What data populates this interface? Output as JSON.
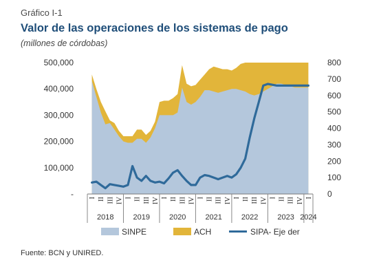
{
  "header": {
    "kicker": "Gráfico I-1",
    "title": "Valor de las operaciones de los sistemas de pago",
    "subtitle": "(millones de córdobas)"
  },
  "source": "Fuente:  BCN y UNIRED.",
  "colors": {
    "sinpe": "#b4c7dc",
    "ach": "#e2b53a",
    "sipa": "#2f6a9a"
  },
  "chart_data": {
    "type": "area",
    "categories": [
      "I",
      "II",
      "III",
      "IV",
      "I",
      "II",
      "III",
      "IV",
      "I",
      "II",
      "III",
      "IV",
      "I",
      "II",
      "III",
      "IV",
      "I",
      "II",
      "III",
      "IV",
      "I",
      "II",
      "III",
      "IV",
      "I",
      "II",
      "III",
      "IV",
      "I",
      "II",
      "III",
      "IV",
      "I",
      "II",
      "III",
      "IV",
      "I",
      "II",
      "III",
      "IV",
      "I",
      "II",
      "III",
      "IV",
      "I",
      "II",
      "III",
      "IV",
      "I",
      "II",
      "III",
      "IV",
      "I",
      "II",
      "III",
      "IV",
      "I"
    ],
    "category_labels": [
      "I",
      "II",
      "III",
      "IV",
      "I",
      "II",
      "III",
      "IV",
      "I",
      "II",
      "III",
      "IV",
      "I",
      "II",
      "III",
      "IV",
      "I",
      "II",
      "III",
      "IV",
      "I",
      "II",
      "III",
      "IV",
      "I"
    ],
    "years": [
      {
        "label": "2018",
        "start": 0,
        "end": 4
      },
      {
        "label": "2019",
        "start": 4,
        "end": 8
      },
      {
        "label": "2020",
        "start": 8,
        "end": 12
      },
      {
        "label": "2021",
        "start": 12,
        "end": 16
      },
      {
        "label": "2022",
        "start": 16,
        "end": 20
      },
      {
        "label": "2023",
        "start": 20,
        "end": 24
      },
      {
        "label": "2024",
        "start": 24,
        "end": 25
      }
    ],
    "x": [
      0.0,
      0.5,
      1.0,
      1.5,
      2.0,
      2.5,
      3.0,
      3.5,
      4.0,
      4.5,
      5.0,
      5.5,
      6.0,
      6.5,
      7.0,
      7.5,
      8.0,
      8.5,
      9.0,
      9.5,
      10.0,
      10.5,
      11.0,
      11.5,
      12.0,
      12.5,
      13.0,
      13.5,
      14.0,
      14.5,
      15.0,
      15.5,
      16.0,
      16.5,
      17.0,
      17.5,
      18.0,
      18.5,
      19.0,
      19.5,
      20.0,
      20.5,
      21.0,
      21.5,
      22.0,
      22.5,
      23.0,
      23.5,
      24.0
    ],
    "series": [
      {
        "name": "SINPE",
        "axis": "left",
        "values": [
          430000,
          370000,
          310000,
          265000,
          270000,
          245000,
          220000,
          200000,
          195000,
          195000,
          210000,
          210000,
          195000,
          215000,
          250000,
          300000,
          300000,
          300000,
          300000,
          310000,
          405000,
          350000,
          340000,
          350000,
          370000,
          395000,
          395000,
          390000,
          385000,
          390000,
          395000,
          400000,
          400000,
          395000,
          390000,
          380000,
          375000,
          380000,
          390000,
          400000,
          410000,
          420000,
          420000,
          415000,
          410000,
          405000,
          405000,
          405000,
          405000
        ]
      },
      {
        "name": "ACH",
        "axis": "left",
        "values": [
          455000,
          400000,
          350000,
          315000,
          280000,
          270000,
          240000,
          220000,
          220000,
          220000,
          245000,
          245000,
          225000,
          240000,
          275000,
          350000,
          355000,
          355000,
          365000,
          380000,
          490000,
          420000,
          410000,
          415000,
          435000,
          455000,
          475000,
          485000,
          480000,
          475000,
          475000,
          470000,
          480000,
          495000,
          500000,
          500000,
          500000,
          500000,
          500000,
          500000,
          500000,
          500000,
          500000,
          500000,
          500000,
          500000,
          500000,
          500000,
          500000
        ]
      },
      {
        "name": "SIPA- Eje der",
        "axis": "right",
        "values": [
          70,
          75,
          55,
          35,
          60,
          55,
          50,
          45,
          55,
          170,
          100,
          80,
          110,
          80,
          70,
          75,
          65,
          95,
          130,
          145,
          110,
          80,
          55,
          55,
          100,
          115,
          110,
          100,
          90,
          100,
          110,
          100,
          120,
          160,
          215,
          345,
          460,
          560,
          660,
          670,
          665,
          660,
          660,
          660,
          660,
          660,
          660,
          660,
          660
        ]
      }
    ],
    "yaxis_left": {
      "min": 0,
      "max": 500000,
      "ticks": [
        "-",
        "100,000",
        "200,000",
        "300,000",
        "400,000",
        "500,000"
      ]
    },
    "yaxis_right": {
      "min": 0,
      "max": 800,
      "ticks": [
        "0",
        "100",
        "200",
        "300",
        "400",
        "500",
        "600",
        "700",
        "800"
      ]
    },
    "legend": [
      "SINPE",
      "ACH",
      "SIPA- Eje der"
    ],
    "legend_position": "bottom"
  }
}
